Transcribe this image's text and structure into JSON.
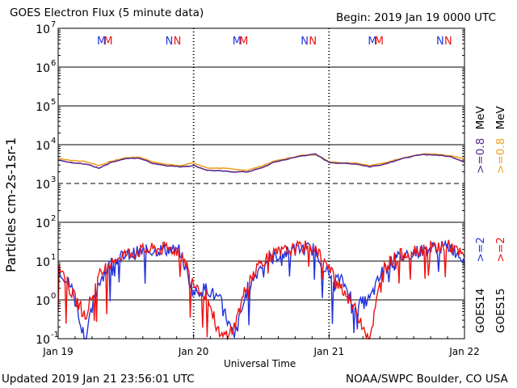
{
  "header": {
    "title": "GOES Electron Flux (5 minute data)",
    "begin": "Begin: 2019 Jan 19 0000 UTC"
  },
  "footer": {
    "updated": "Updated 2019 Jan 21 23:56:01 UTC",
    "credit": "NOAA/SWPC Boulder, CO USA"
  },
  "colors": {
    "goes14_high": "#2233dd",
    "goes15_high": "#ee1111",
    "goes14_low": "#5b2a8c",
    "goes15_low": "#f0a020"
  },
  "chart_data": {
    "type": "line",
    "title": "GOES Electron Flux (5 minute data)",
    "xlabel": "Universal Time",
    "ylabel": "Particles cm-2s-1sr-1",
    "yscale": "log",
    "ylim": [
      0.1,
      10000000
    ],
    "xlim": [
      "2019-01-19",
      "2019-01-22"
    ],
    "x_ticks": [
      "Jan 19",
      "Jan 20",
      "Jan 21",
      "Jan 22"
    ],
    "y_ticks": [
      {
        "base": "10",
        "exp": "7"
      },
      {
        "base": "10",
        "exp": "6"
      },
      {
        "base": "10",
        "exp": "5"
      },
      {
        "base": "10",
        "exp": "4"
      },
      {
        "base": "10",
        "exp": "3"
      },
      {
        "base": "10",
        "exp": "2"
      },
      {
        "base": "10",
        "exp": "1"
      },
      {
        "base": "10",
        "exp": "0"
      },
      {
        "base": "10",
        "exp": "-1"
      }
    ],
    "markers": [
      {
        "label": "M",
        "day": 0.32,
        "series": "GOES14"
      },
      {
        "label": "M",
        "day": 0.37,
        "series": "GOES15"
      },
      {
        "label": "N",
        "day": 0.82,
        "series": "GOES14"
      },
      {
        "label": "N",
        "day": 0.88,
        "series": "GOES15"
      },
      {
        "label": "M",
        "day": 1.32,
        "series": "GOES14"
      },
      {
        "label": "M",
        "day": 1.37,
        "series": "GOES15"
      },
      {
        "label": "N",
        "day": 1.82,
        "series": "GOES14"
      },
      {
        "label": "N",
        "day": 1.88,
        "series": "GOES15"
      },
      {
        "label": "M",
        "day": 2.32,
        "series": "GOES14"
      },
      {
        "label": "M",
        "day": 2.37,
        "series": "GOES15"
      },
      {
        "label": "N",
        "day": 2.82,
        "series": "GOES14"
      },
      {
        "label": "N",
        "day": 2.88,
        "series": "GOES15"
      }
    ],
    "series": [
      {
        "name": "GOES15 >=0.8 MeV",
        "color": "#f0a020",
        "x": [
          0,
          0.1,
          0.2,
          0.3,
          0.4,
          0.5,
          0.6,
          0.7,
          0.8,
          0.9,
          1.0,
          1.1,
          1.2,
          1.3,
          1.4,
          1.5,
          1.6,
          1.7,
          1.8,
          1.9,
          2.0,
          2.1,
          2.2,
          2.3,
          2.4,
          2.5,
          2.6,
          2.7,
          2.8,
          2.9,
          3.0
        ],
        "y": [
          4500,
          3900,
          3700,
          2900,
          3800,
          4600,
          4800,
          3600,
          3100,
          2900,
          3400,
          2500,
          2500,
          2300,
          2200,
          2800,
          3800,
          4500,
          5300,
          5600,
          3700,
          3400,
          3400,
          2900,
          3300,
          4200,
          5000,
          5800,
          5600,
          5100,
          4300
        ]
      },
      {
        "name": "GOES14 >=0.8 MeV",
        "color": "#5b2a8c",
        "x": [
          0,
          0.1,
          0.2,
          0.3,
          0.4,
          0.5,
          0.6,
          0.7,
          0.8,
          0.9,
          1.0,
          1.1,
          1.2,
          1.3,
          1.4,
          1.5,
          1.6,
          1.7,
          1.8,
          1.9,
          2.0,
          2.1,
          2.2,
          2.3,
          2.4,
          2.5,
          2.6,
          2.7,
          2.8,
          2.9,
          3.0
        ],
        "y": [
          4000,
          3400,
          3200,
          2500,
          3600,
          4400,
          4500,
          3300,
          2900,
          2700,
          2900,
          2200,
          2100,
          2000,
          2000,
          2500,
          3600,
          4300,
          5200,
          5700,
          3500,
          3300,
          3200,
          2700,
          3100,
          4000,
          4900,
          5600,
          5400,
          4900,
          3600
        ]
      },
      {
        "name": "GOES14 >=2 MeV",
        "color": "#2233dd",
        "x": [
          0,
          0.1,
          0.2,
          0.3,
          0.4,
          0.5,
          0.6,
          0.7,
          0.8,
          0.9,
          1.0,
          1.1,
          1.2,
          1.3,
          1.4,
          1.5,
          1.6,
          1.7,
          1.8,
          1.9,
          2.0,
          2.1,
          2.2,
          2.3,
          2.4,
          2.5,
          2.6,
          2.7,
          2.8,
          2.9,
          3.0
        ],
        "y": [
          7,
          2,
          0.1,
          3,
          10,
          14,
          17,
          19,
          20,
          18,
          1.5,
          2,
          0.9,
          0.1,
          2,
          8,
          13,
          17,
          21,
          20,
          4,
          3,
          0.7,
          1,
          6,
          12,
          16,
          19,
          22,
          23,
          11
        ]
      },
      {
        "name": "GOES15 >=2 MeV",
        "color": "#ee1111",
        "x": [
          0,
          0.1,
          0.2,
          0.3,
          0.4,
          0.5,
          0.6,
          0.7,
          0.8,
          0.9,
          1.0,
          1.1,
          1.2,
          1.3,
          1.4,
          1.5,
          1.6,
          1.7,
          1.8,
          1.9,
          2.0,
          2.1,
          2.2,
          2.3,
          2.4,
          2.5,
          2.6,
          2.7,
          2.8,
          2.9,
          3.0
        ],
        "y": [
          9,
          1.5,
          0.4,
          4,
          11,
          15,
          18,
          20,
          21,
          19,
          3,
          1.2,
          0.1,
          0.2,
          3,
          10,
          15,
          19,
          23,
          22,
          6,
          2,
          0.5,
          0.1,
          7,
          13,
          18,
          21,
          24,
          24,
          12
        ]
      }
    ],
    "legend": [
      {
        "label": "GOES14",
        "high": ">=2",
        "low": ">=0.8",
        "unit": "MeV"
      },
      {
        "label": "GOES15",
        "high": ">=2",
        "low": ">=0.8",
        "unit": "MeV"
      }
    ]
  }
}
